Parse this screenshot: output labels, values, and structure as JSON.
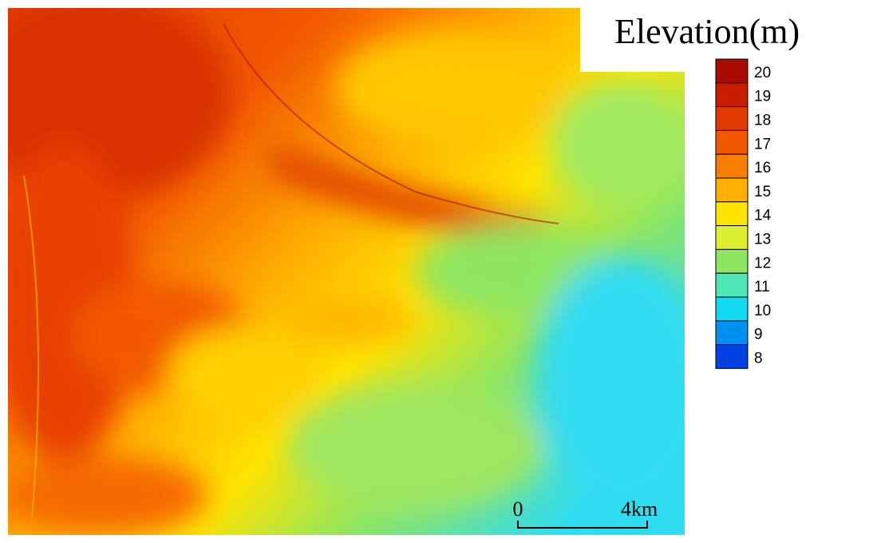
{
  "legend": {
    "title": "Elevation(m)",
    "levels": [
      {
        "value": 20,
        "color": "#a80c00"
      },
      {
        "value": 19,
        "color": "#c81e00"
      },
      {
        "value": 18,
        "color": "#e03a00"
      },
      {
        "value": 17,
        "color": "#f25800"
      },
      {
        "value": 16,
        "color": "#f77f00"
      },
      {
        "value": 15,
        "color": "#ffb000"
      },
      {
        "value": 14,
        "color": "#ffe400"
      },
      {
        "value": 13,
        "color": "#dcf030"
      },
      {
        "value": 12,
        "color": "#8ee660"
      },
      {
        "value": 11,
        "color": "#4ee8b8"
      },
      {
        "value": 10,
        "color": "#10d8f0"
      },
      {
        "value": 9,
        "color": "#0090f0"
      },
      {
        "value": 8,
        "color": "#0040e0"
      }
    ]
  },
  "scale_bar": {
    "start": "0",
    "end": "4km"
  }
}
